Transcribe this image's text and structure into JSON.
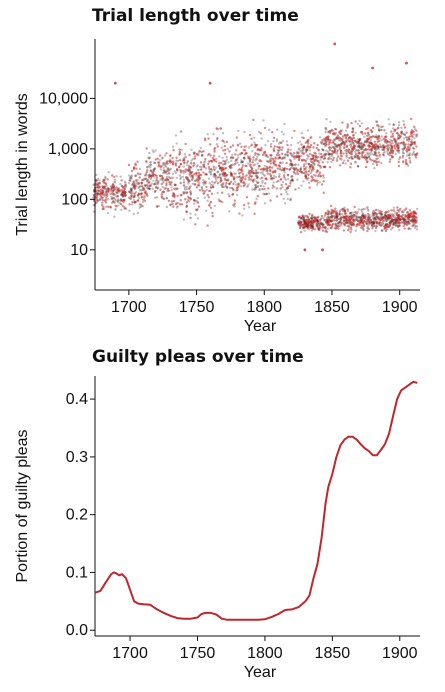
{
  "chart_data": [
    {
      "type": "scatter",
      "title": "Trial length over time",
      "xlabel": "Year",
      "ylabel": "Trial length in words",
      "xlim": [
        1675,
        1915
      ],
      "ylim": [
        1.6,
        150000
      ],
      "yscale": "log",
      "x_ticks": [
        1700,
        1750,
        1800,
        1850,
        1900
      ],
      "y_ticks": [
        10,
        100,
        1000,
        10000
      ],
      "y_tick_labels": [
        "10",
        "100",
        "1,000",
        "10,000"
      ],
      "colors": {
        "series_a": "#c62828",
        "series_b": "#1a1a1a"
      },
      "grid": false,
      "density_bands": [
        {
          "x_start": 1674,
          "x_end": 1698,
          "y_low": 40,
          "y_high": 400
        },
        {
          "x_start": 1700,
          "x_end": 1712,
          "y_low": 40,
          "y_high": 700
        },
        {
          "x_start": 1712,
          "x_end": 1730,
          "y_low": 50,
          "y_high": 1500
        },
        {
          "x_start": 1730,
          "x_end": 1760,
          "y_low": 20,
          "y_high": 3000
        },
        {
          "x_start": 1760,
          "x_end": 1790,
          "y_low": 30,
          "y_high": 4000
        },
        {
          "x_start": 1790,
          "x_end": 1820,
          "y_low": 40,
          "y_high": 5000
        },
        {
          "x_start": 1820,
          "x_end": 1845,
          "y_low": 100,
          "y_high": 3000
        },
        {
          "x_start": 1825,
          "x_end": 1845,
          "y_low": 20,
          "y_high": 60
        },
        {
          "x_start": 1845,
          "x_end": 1913,
          "y_low": 300,
          "y_high": 5000
        },
        {
          "x_start": 1845,
          "x_end": 1913,
          "y_low": 20,
          "y_high": 80
        }
      ],
      "sample_points": [
        {
          "x": 1690,
          "y": 20000
        },
        {
          "x": 1852,
          "y": 120000
        },
        {
          "x": 1905,
          "y": 50000
        },
        {
          "x": 1880,
          "y": 40000
        },
        {
          "x": 1760,
          "y": 20000
        },
        {
          "x": 1830,
          "y": 10
        },
        {
          "x": 1843,
          "y": 10
        }
      ]
    },
    {
      "type": "line",
      "title": "Guilty pleas over time",
      "xlabel": "Year",
      "ylabel": "Portion of guilty pleas",
      "xlim": [
        1674,
        1915
      ],
      "ylim": [
        -0.01,
        0.44
      ],
      "x_ticks": [
        1700,
        1750,
        1800,
        1850,
        1900
      ],
      "y_ticks": [
        0.0,
        0.1,
        0.2,
        0.3,
        0.4
      ],
      "y_tick_labels": [
        "0.0",
        "0.1",
        "0.2",
        "0.3",
        "0.4"
      ],
      "color": "#c0272d",
      "grid": false,
      "x": [
        1674,
        1678,
        1682,
        1686,
        1688,
        1690,
        1692,
        1694,
        1697,
        1700,
        1703,
        1706,
        1710,
        1715,
        1720,
        1725,
        1730,
        1735,
        1740,
        1745,
        1750,
        1753,
        1756,
        1760,
        1764,
        1768,
        1772,
        1776,
        1780,
        1785,
        1790,
        1795,
        1800,
        1805,
        1810,
        1815,
        1820,
        1825,
        1830,
        1833,
        1836,
        1839,
        1842,
        1845,
        1847,
        1850,
        1853,
        1856,
        1859,
        1862,
        1865,
        1868,
        1871,
        1874,
        1877,
        1880,
        1883,
        1886,
        1889,
        1892,
        1895,
        1898,
        1901,
        1904,
        1907,
        1910,
        1913
      ],
      "y": [
        0.065,
        0.068,
        0.083,
        0.097,
        0.1,
        0.098,
        0.095,
        0.097,
        0.09,
        0.07,
        0.05,
        0.046,
        0.045,
        0.044,
        0.036,
        0.03,
        0.025,
        0.021,
        0.02,
        0.02,
        0.022,
        0.028,
        0.03,
        0.03,
        0.027,
        0.02,
        0.018,
        0.018,
        0.018,
        0.018,
        0.018,
        0.018,
        0.019,
        0.023,
        0.028,
        0.035,
        0.036,
        0.04,
        0.05,
        0.06,
        0.09,
        0.115,
        0.16,
        0.22,
        0.248,
        0.27,
        0.3,
        0.32,
        0.33,
        0.335,
        0.335,
        0.33,
        0.322,
        0.315,
        0.31,
        0.303,
        0.303,
        0.312,
        0.322,
        0.34,
        0.37,
        0.4,
        0.415,
        0.42,
        0.425,
        0.43,
        0.428
      ]
    }
  ]
}
